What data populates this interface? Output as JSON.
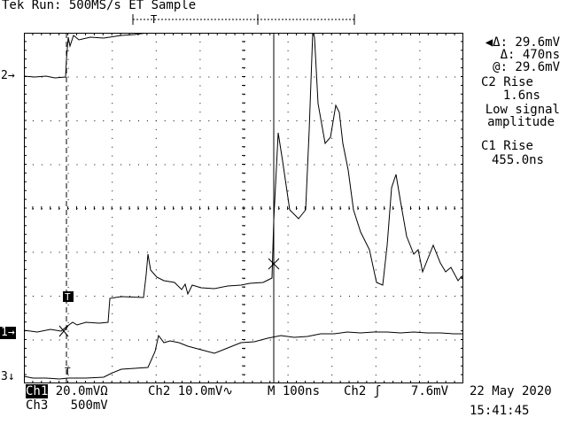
{
  "status": "Tek Run: 500MS/s ET Sample",
  "readouts": {
    "delta_v": "Δ: 29.6mV",
    "delta_t": "Δ: 470ns",
    "at_v": "@: 29.6mV",
    "meas1_title": "C2 Rise",
    "meas1_value": "1.6ns",
    "meas1_note1": "Low signal",
    "meas1_note2": "amplitude",
    "meas2_title": "C1 Rise",
    "meas2_value": "455.0ns"
  },
  "markers": {
    "ch2": "2→",
    "ch1": "1→",
    "ch3": "3↓",
    "trigger": "T"
  },
  "bottom_bar": {
    "ch1_label": "Ch1",
    "ch1_scale": "20.0mVΩ",
    "ch2_label": "Ch2",
    "ch2_scale": "10.0mV∿",
    "timebase_label": "M",
    "timebase_value": "100ns",
    "trigger_ch": "Ch2",
    "trigger_slope": "ʃ",
    "trigger_level": "7.6mV",
    "ch3_label": "Ch3",
    "ch3_scale": "500mV",
    "date": "22 May 2020",
    "time": "15:41:45"
  },
  "colors": {
    "background": "#ffffff",
    "traces": "#000000",
    "grid": "#000000"
  }
}
